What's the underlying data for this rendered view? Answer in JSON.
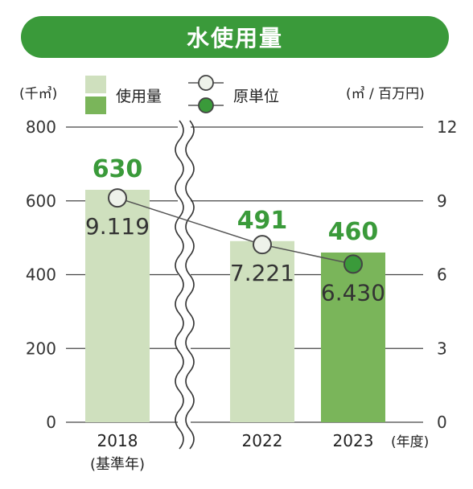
{
  "header": {
    "title": "水使用量"
  },
  "chart_data": {
    "type": "bar",
    "title": "水使用量",
    "categories": [
      "2018",
      "2022",
      "2023"
    ],
    "category_notes": [
      "(基準年)",
      "",
      ""
    ],
    "xlabel": "(年度)",
    "y_left_unit": "(千㎥)",
    "y_right_unit": "(㎥ / 百万円)",
    "ylim_left": [
      0,
      800
    ],
    "ylim_right": [
      0,
      12
    ],
    "y_left_ticks": [
      "0",
      "200",
      "400",
      "600",
      "800"
    ],
    "y_right_ticks": [
      "0",
      "3",
      "6",
      "9",
      "12"
    ],
    "grid": true,
    "axis_break": "between 2018 and 2022",
    "series": [
      {
        "name": "使用量",
        "kind": "bar",
        "axis": "left",
        "values": [
          630,
          491,
          460
        ],
        "labels": [
          "630",
          "491",
          "460"
        ],
        "colors": [
          "#cfe0be",
          "#cfe0be",
          "#7ab55a"
        ]
      },
      {
        "name": "原単位",
        "kind": "line",
        "axis": "right",
        "values": [
          9.119,
          7.221,
          6.43
        ],
        "labels": [
          "9.119",
          "7.221",
          "6.430"
        ]
      }
    ],
    "legend": [
      {
        "label": "使用量",
        "swatches": [
          "#cfe0be",
          "#7ab55a"
        ]
      },
      {
        "label": "原単位",
        "markers": [
          "#eef2ea",
          "#3a9a3a"
        ]
      }
    ],
    "legend_position": "top",
    "colors": {
      "value_label": "#3a9a3a",
      "line": "#555555",
      "gridline": "#444444"
    }
  }
}
